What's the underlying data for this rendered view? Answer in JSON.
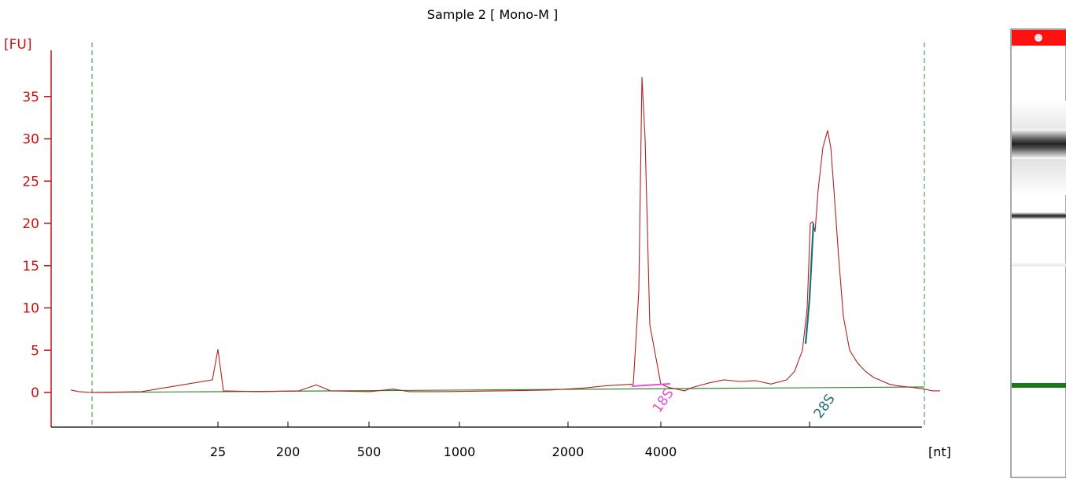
{
  "chart_data": {
    "type": "line",
    "title": "Sample 2  [ Mono-M ]",
    "ylabel": "[FU]",
    "xlabel": "[nt]",
    "ylim": [
      0,
      40
    ],
    "yticks": [
      0,
      5,
      10,
      15,
      20,
      25,
      30,
      35
    ],
    "x_tick_labels": [
      "25",
      "200",
      "500",
      "1000",
      "2000",
      "4000"
    ],
    "x_scale": "nonlinear (ladder-calibrated nt)",
    "colors": {
      "trace": "#b22222",
      "axis": "#cc1111",
      "baseline": "#2e8b2e",
      "marker_18S": "#e64fd6",
      "marker_28S": "#1f6f78",
      "gel_top": "#ff1111",
      "gel_marker": "#1a7a1a"
    },
    "series": [
      {
        "values_note": "electropherogram fluorescence (FU) sampled along the nt axis",
        "x": [
          25,
          25,
          25,
          25,
          25,
          25,
          25,
          200,
          200,
          300,
          300,
          500,
          500,
          600,
          600,
          800,
          1000,
          1200,
          1500,
          1800,
          2000,
          2200,
          2400,
          2700,
          3000,
          3200,
          3400,
          3600,
          3700,
          3800,
          3900,
          4000,
          4100,
          4200,
          4400,
          4600,
          4800,
          5000,
          5200,
          5400,
          5600,
          5800,
          6000,
          6200,
          6300,
          6400,
          6500,
          6600,
          6700,
          6800,
          6900,
          7000,
          7100,
          7200,
          7300,
          7400,
          7500,
          7700,
          7900,
          8100
        ],
        "y": [
          0.3,
          0.1,
          0.0,
          0.1,
          1.5,
          5.1,
          0.2,
          0.1,
          0.2,
          0.9,
          0.2,
          0.1,
          0.4,
          0.1,
          0.1,
          0.2,
          0.2,
          0.3,
          0.4,
          0.5,
          0.8,
          0.6,
          0.9,
          1.3,
          0.9,
          37.3,
          30.0,
          3.0,
          1.0,
          0.6,
          0.2,
          0.6,
          0.9,
          1.5,
          1.5,
          1.6,
          1.2,
          1.3,
          0.8,
          1.3,
          1.4,
          2.5,
          5.0,
          10.0,
          20.0,
          19.0,
          24.0,
          29.0,
          31.0,
          28.0,
          22.0,
          14.0,
          8.0,
          5.0,
          3.5,
          2.5,
          1.8,
          1.2,
          0.8,
          0.6
        ]
      }
    ],
    "annotations": [
      "18S",
      "28S"
    ]
  }
}
